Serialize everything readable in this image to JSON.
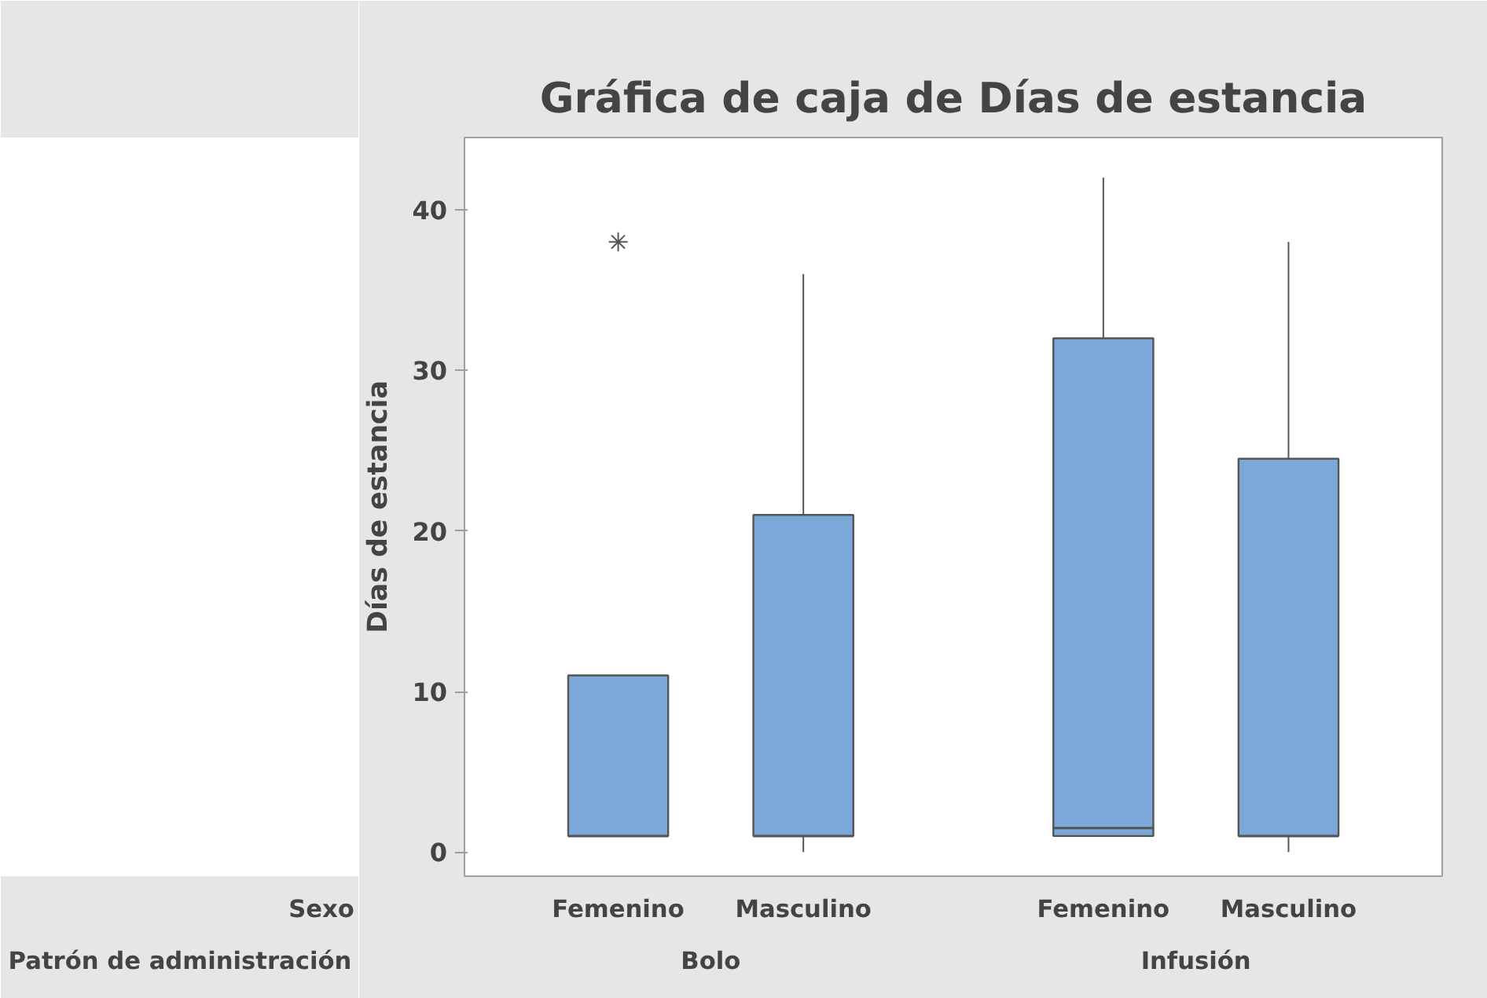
{
  "chart_data": {
    "type": "box",
    "title": "Gráfica de caja de Días de estancia",
    "ylabel": "Días de estancia",
    "categories": [
      "Femenino",
      "Masculino",
      "Femenino",
      "Masculino"
    ],
    "color": "#7ba7d9",
    "boxes": [
      {
        "low": 1,
        "q1": 1,
        "median": 1,
        "q3": 11,
        "high": 11,
        "outliers": [
          38
        ]
      },
      {
        "low": 0,
        "q1": 1,
        "median": 1,
        "q3": 21,
        "high": 36
      },
      {
        "low": 1,
        "q1": 1,
        "median": 1.5,
        "q3": 32,
        "high": 42
      },
      {
        "low": 0,
        "q1": 1,
        "median": 1,
        "q3": 24.5,
        "high": 38
      }
    ],
    "ylim": [
      -1.5,
      44.5
    ],
    "yticks": [
      0,
      10,
      20,
      30,
      40
    ],
    "grid": false,
    "annotations": [
      "Sexo",
      "Patrón de administración",
      "Bolo",
      "Infusión"
    ]
  }
}
